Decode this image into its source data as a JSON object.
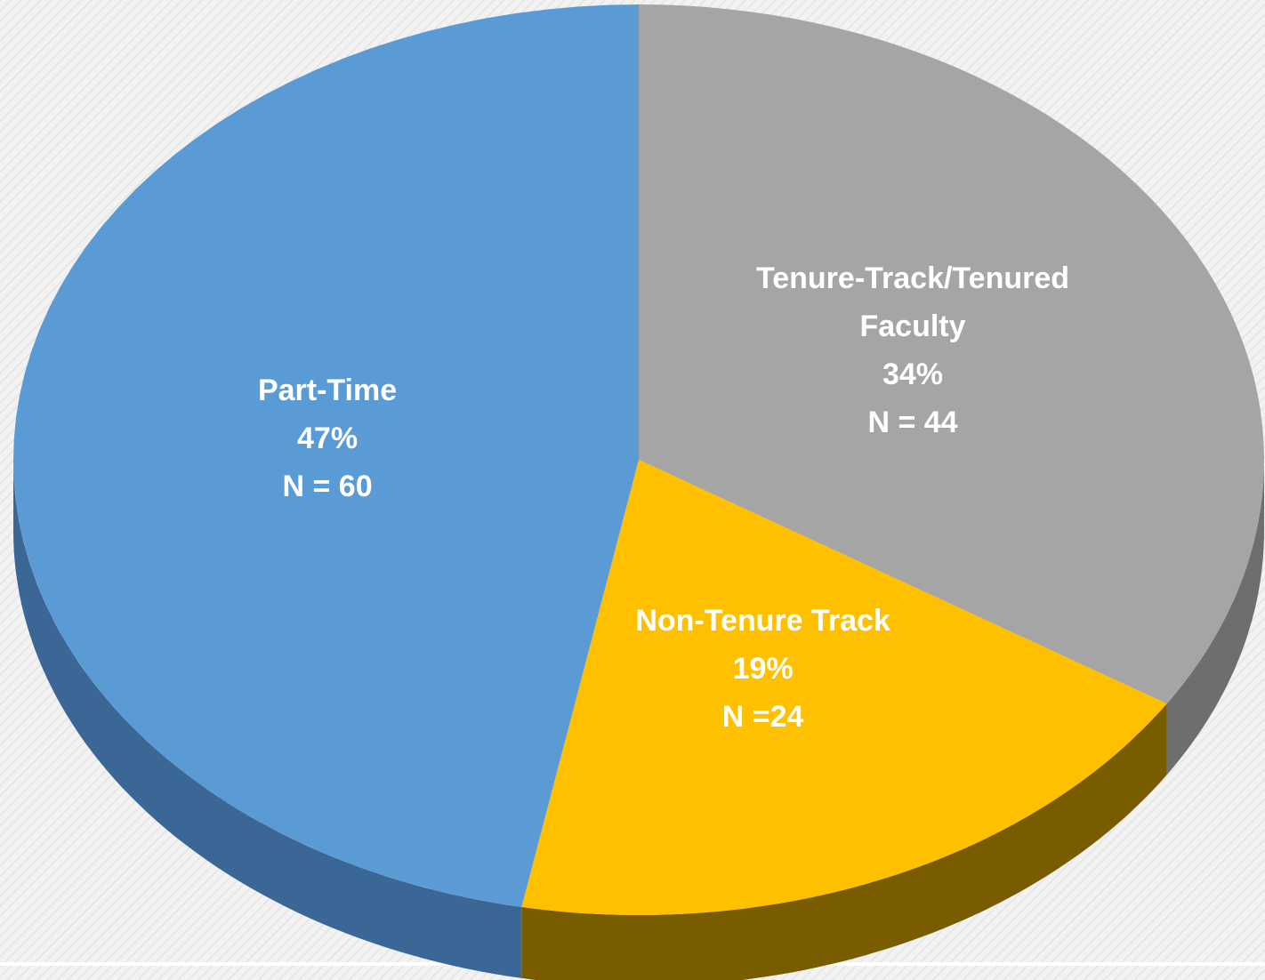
{
  "chart_data": {
    "type": "pie",
    "categories": [
      "Tenure-Track/Tenured Faculty",
      "Non-Tenure Track",
      "Part-Time"
    ],
    "values": [
      34,
      19,
      47
    ],
    "value_labels": [
      "34%",
      "19%",
      "47%"
    ],
    "count_labels": [
      "N = 44",
      "N =24",
      "N = 60"
    ],
    "colors": [
      "#a5a5a5",
      "#ffc000",
      "#5b9bd5"
    ],
    "side_colors": [
      "#6e6e6e",
      "#7a5c00",
      "#3a6796"
    ]
  }
}
